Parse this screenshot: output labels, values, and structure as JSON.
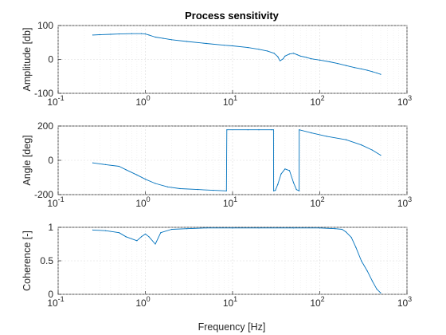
{
  "figure": {
    "title": "Process sensitivity",
    "xlabel": "Frequency [Hz]"
  },
  "colors": {
    "line": "#0072bd",
    "axes": "#262626",
    "grid": "#d9d9d9"
  },
  "chart_data": [
    {
      "type": "line",
      "title": "Process sensitivity",
      "xlabel": "",
      "ylabel": "Amplitude [db]",
      "xscale": "log",
      "xlim": [
        0.1,
        1000
      ],
      "ylim": [
        -100,
        100
      ],
      "yticks": [
        -100,
        0,
        100
      ],
      "xtick_labels": [
        "10^-1",
        "10^0",
        "10^1",
        "10^2",
        "10^3"
      ],
      "grid": true,
      "series": [
        {
          "x": [
            0.25,
            0.3,
            0.4,
            0.5,
            0.7,
            0.9,
            1.0,
            1.1,
            1.3,
            1.6,
            2,
            3,
            5,
            8,
            10,
            15,
            20,
            25,
            30,
            33,
            35,
            38,
            40,
            45,
            50,
            55,
            60,
            70,
            80,
            100,
            130,
            160,
            200,
            250,
            300,
            350,
            400,
            450,
            500
          ],
          "y": [
            72,
            73,
            74,
            75,
            76,
            76,
            75,
            72,
            66,
            62,
            58,
            53,
            47,
            42,
            40,
            35,
            30,
            25,
            18,
            8,
            -4,
            2,
            10,
            16,
            18,
            14,
            10,
            6,
            2,
            -2,
            -7,
            -12,
            -18,
            -24,
            -28,
            -32,
            -36,
            -40,
            -44
          ]
        }
      ]
    },
    {
      "type": "line",
      "title": "",
      "xlabel": "",
      "ylabel": "Angle [deg]",
      "xscale": "log",
      "xlim": [
        0.1,
        1000
      ],
      "ylim": [
        -200,
        200
      ],
      "yticks": [
        -200,
        0,
        200
      ],
      "xtick_labels": [
        "10^-1",
        "10^0",
        "10^1",
        "10^2",
        "10^3"
      ],
      "grid": true,
      "series": [
        {
          "x": [
            0.25,
            0.35,
            0.5,
            0.6,
            0.8,
            1.0,
            1.3,
            1.8,
            2.5,
            4,
            6,
            8.5,
            8.6,
            15,
            20,
            28,
            29.5,
            29.6,
            31,
            33,
            36,
            40,
            45,
            50,
            54,
            58,
            58.1,
            80,
            120,
            200,
            300,
            400,
            500
          ],
          "y": [
            -15,
            -25,
            -35,
            -55,
            -85,
            -110,
            -135,
            -155,
            -165,
            -170,
            -175,
            -178,
            178,
            178,
            178,
            178,
            178,
            -178,
            -175,
            -140,
            -80,
            -50,
            -60,
            -130,
            -170,
            -178,
            178,
            160,
            140,
            120,
            90,
            60,
            30
          ]
        }
      ]
    },
    {
      "type": "line",
      "title": "",
      "xlabel": "Frequency [Hz]",
      "ylabel": "Coherence [-]",
      "xscale": "log",
      "xlim": [
        0.1,
        1000
      ],
      "ylim": [
        0,
        1
      ],
      "yticks": [
        0,
        0.5,
        1
      ],
      "xtick_labels": [
        "10^-1",
        "10^0",
        "10^1",
        "10^2",
        "10^3"
      ],
      "grid": true,
      "series": [
        {
          "x": [
            0.25,
            0.35,
            0.5,
            0.6,
            0.8,
            0.9,
            1.0,
            1.1,
            1.3,
            1.5,
            2,
            3,
            5,
            10,
            20,
            50,
            100,
            150,
            180,
            200,
            230,
            260,
            300,
            350,
            400,
            450,
            500
          ],
          "y": [
            0.96,
            0.95,
            0.92,
            0.86,
            0.8,
            0.86,
            0.9,
            0.86,
            0.75,
            0.92,
            0.97,
            0.98,
            0.99,
            0.99,
            0.99,
            0.99,
            0.99,
            0.98,
            0.97,
            0.93,
            0.85,
            0.7,
            0.5,
            0.35,
            0.2,
            0.08,
            0.02
          ]
        }
      ]
    }
  ]
}
